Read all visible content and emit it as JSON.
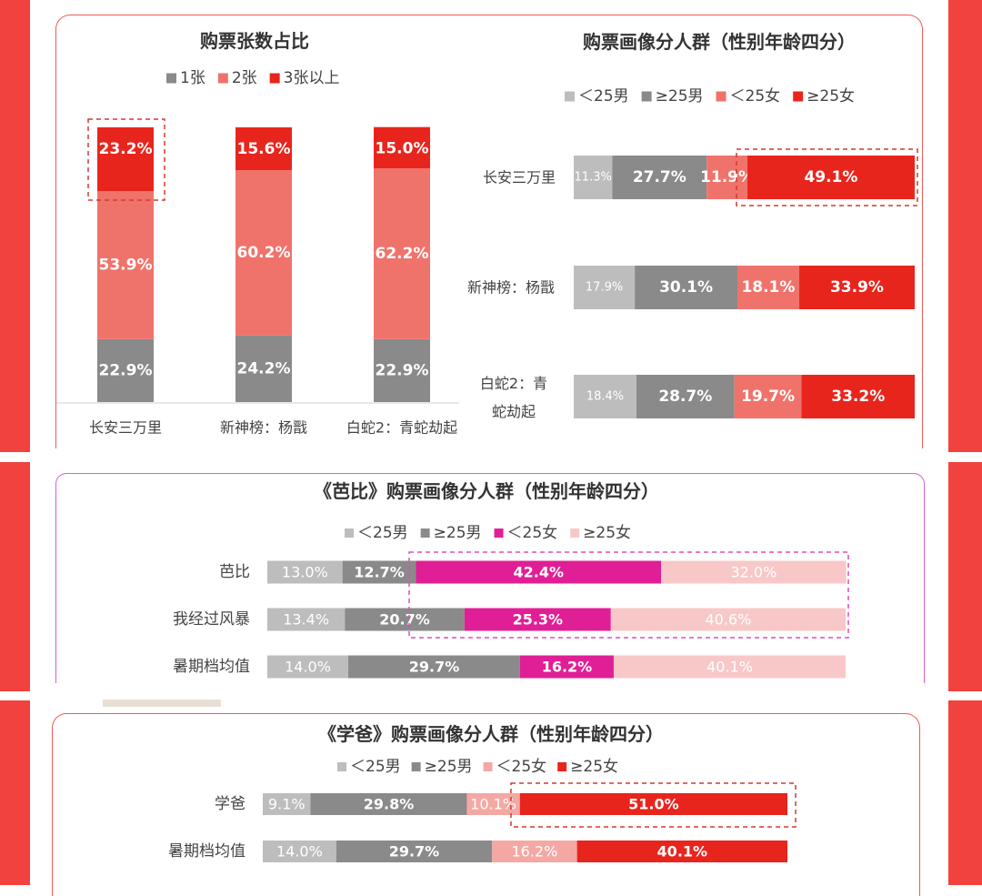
{
  "colors": {
    "side_bar": "#f2423e",
    "panel_border_red": "#ee5a55",
    "panel_border_magenta": "#dd5fd0",
    "grey_light": "#bdbdbd",
    "grey_dark": "#8a8a8a",
    "salmon": "#f0736b",
    "red": "#e8251d",
    "magenta": "#e01f96",
    "pink_light": "#f8c8c8"
  },
  "chart_data": [
    {
      "type": "bar",
      "stacked": true,
      "orientation": "vertical",
      "title": "购票张数占比",
      "legend_position": "top",
      "categories": [
        "长安三万里",
        "新神榜：杨戬",
        "白蛇2：青蛇劫起"
      ],
      "series": [
        {
          "name": "1张",
          "color": "#8a8a8a",
          "values": [
            22.9,
            24.2,
            22.9
          ],
          "labels": [
            "22.9%",
            "24.2%",
            "22.9%"
          ]
        },
        {
          "name": "2张",
          "color": "#f0736b",
          "values": [
            53.9,
            60.2,
            62.2
          ],
          "labels": [
            "53.9%",
            "60.2%",
            "62.2%"
          ]
        },
        {
          "name": "3张以上",
          "color": "#e8251d",
          "values": [
            23.2,
            15.6,
            15.0
          ],
          "labels": [
            "23.2%",
            "15.6%",
            "15.0%"
          ]
        }
      ],
      "ylim": [
        0,
        100
      ],
      "grid": false
    },
    {
      "type": "bar",
      "stacked": true,
      "orientation": "horizontal",
      "title": "购票画像分人群（性别年龄四分）",
      "legend_position": "top",
      "categories": [
        "长安三万里",
        "新神榜：杨戬",
        "白蛇2：青蛇劫起"
      ],
      "series": [
        {
          "name": "＜25男",
          "color": "#bdbdbd",
          "values": [
            11.3,
            17.9,
            18.4
          ],
          "labels": [
            "11.3%",
            "17.9%",
            "18.4%"
          ]
        },
        {
          "name": "≥25男",
          "color": "#8a8a8a",
          "values": [
            27.7,
            30.1,
            28.7
          ],
          "labels": [
            "27.7%",
            "30.1%",
            "28.7%"
          ]
        },
        {
          "name": "＜25女",
          "color": "#f0736b",
          "values": [
            11.9,
            18.1,
            19.7
          ],
          "labels": [
            "11.9%",
            "18.1%",
            "19.7%"
          ]
        },
        {
          "name": "≥25女",
          "color": "#e8251d",
          "values": [
            49.1,
            33.9,
            33.2
          ],
          "labels": [
            "49.1%",
            "33.9%",
            "33.2%"
          ]
        }
      ],
      "xlim": [
        0,
        100
      ],
      "grid": false
    },
    {
      "type": "bar",
      "stacked": true,
      "orientation": "horizontal",
      "title": "《芭比》购票画像分人群（性别年龄四分）",
      "legend_position": "top",
      "categories": [
        "芭比",
        "我经过风暴",
        "暑期档均值"
      ],
      "series": [
        {
          "name": "＜25男",
          "color": "#bdbdbd",
          "values": [
            13.0,
            13.4,
            14.0
          ],
          "labels": [
            "13.0%",
            "13.4%",
            "14.0%"
          ]
        },
        {
          "name": "≥25男",
          "color": "#8a8a8a",
          "values": [
            12.7,
            20.7,
            29.7
          ],
          "labels": [
            "12.7%",
            "20.7%",
            "29.7%"
          ]
        },
        {
          "name": "＜25女",
          "color": "#e01f96",
          "values": [
            42.4,
            25.3,
            16.2
          ],
          "labels": [
            "42.4%",
            "25.3%",
            "16.2%"
          ]
        },
        {
          "name": "≥25女",
          "color": "#f8c8c8",
          "values": [
            32.0,
            40.6,
            40.1
          ],
          "labels": [
            "32.0%",
            "40.6%",
            "40.1%"
          ]
        }
      ],
      "xlim": [
        0,
        100
      ],
      "grid": false
    },
    {
      "type": "bar",
      "stacked": true,
      "orientation": "horizontal",
      "title": "《学爸》购票画像分人群（性别年龄四分）",
      "legend_position": "top",
      "categories": [
        "学爸",
        "暑期档均值"
      ],
      "series": [
        {
          "name": "＜25男",
          "color": "#bdbdbd",
          "values": [
            9.1,
            14.0
          ],
          "labels": [
            "9.1%",
            "14.0%"
          ]
        },
        {
          "name": "≥25男",
          "color": "#8a8a8a",
          "values": [
            29.8,
            29.7
          ],
          "labels": [
            "29.8%",
            "29.7%"
          ]
        },
        {
          "name": "＜25女",
          "color": "#f4a8a4",
          "values": [
            10.1,
            16.2
          ],
          "labels": [
            "10.1%",
            "16.2%"
          ]
        },
        {
          "name": "≥25女",
          "color": "#e8251d",
          "values": [
            51.0,
            40.1
          ],
          "labels": [
            "51.0%",
            "40.1%"
          ]
        }
      ],
      "xlim": [
        0,
        100
      ],
      "grid": false
    }
  ]
}
